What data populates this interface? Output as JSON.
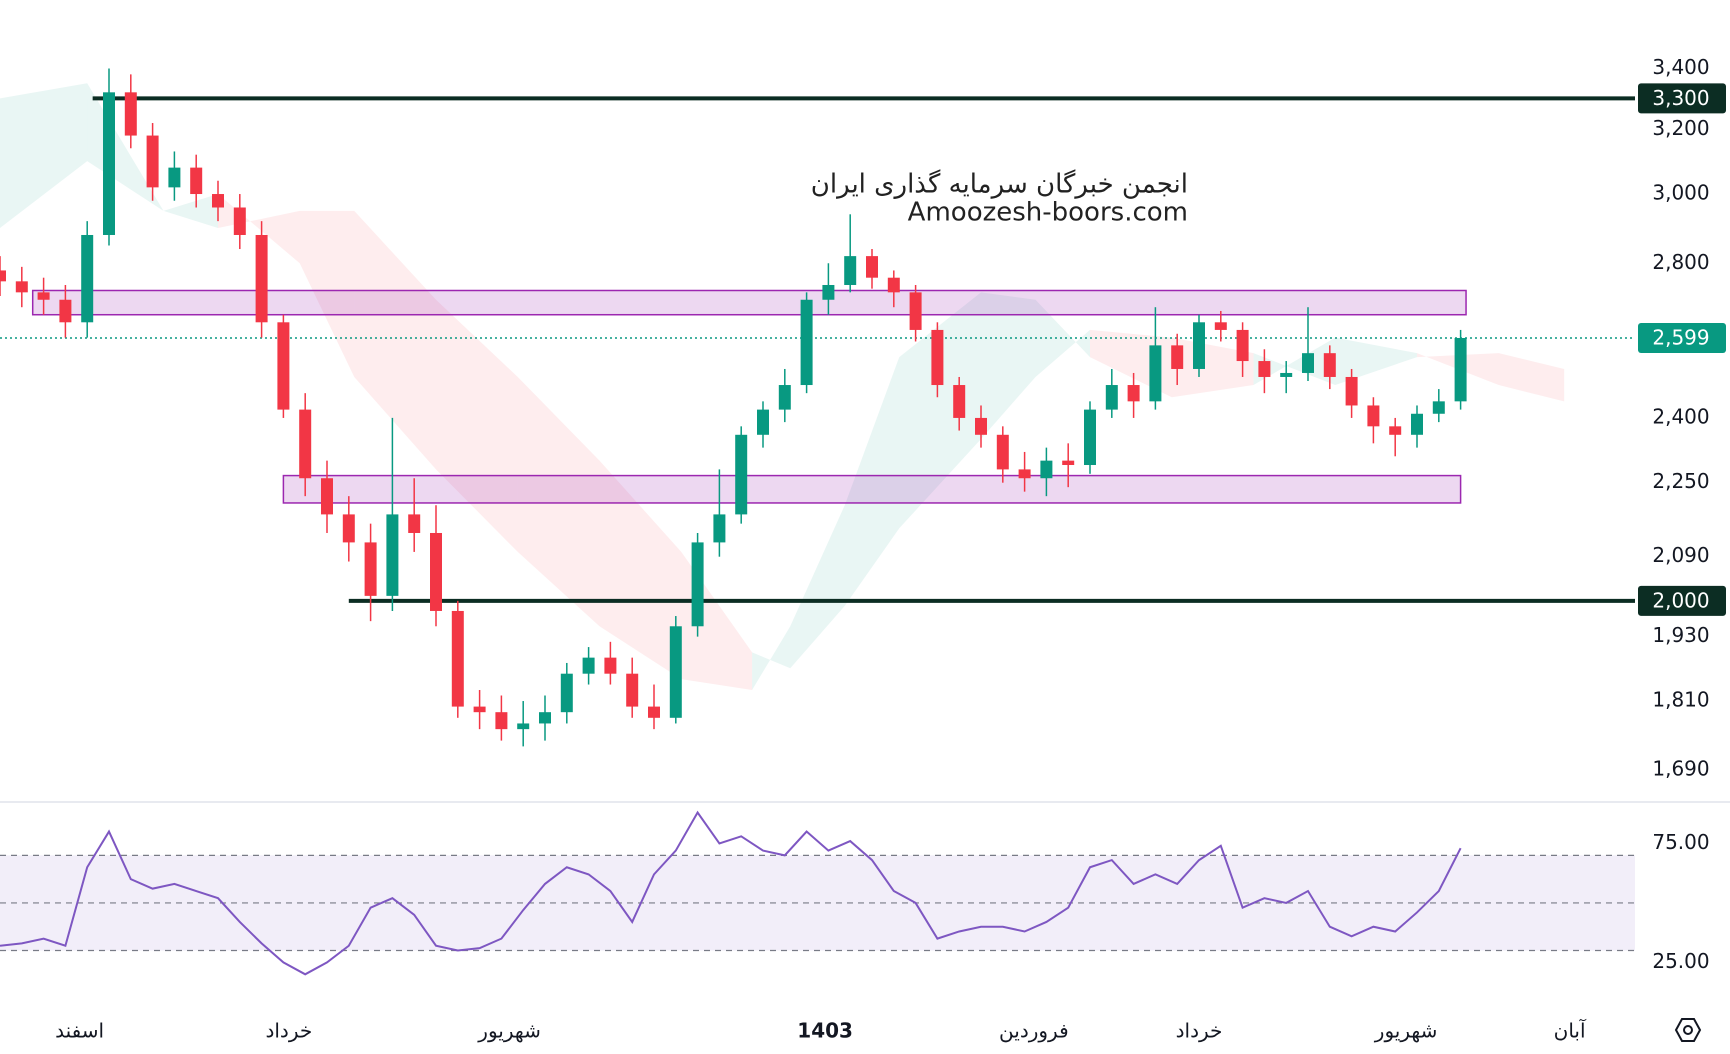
{
  "chart_data": {
    "type": "candlestick",
    "watermark": [
      "انجمن خبرگان سرمایه گذاری ایران",
      "Amoozesh-boors.com"
    ],
    "log": true,
    "xlim": [
      0,
      300
    ],
    "ylim": [
      1640,
      3640
    ],
    "up_color": "#089981",
    "down_color": "#f23645",
    "yticks": [
      {
        "value": 3400,
        "label": "3,400"
      },
      {
        "value": 3200,
        "label": "3,200"
      },
      {
        "value": 3000,
        "label": "3,000"
      },
      {
        "value": 2800,
        "label": "2,800"
      },
      {
        "value": 2400,
        "label": "2,400"
      },
      {
        "value": 2250,
        "label": "2,250"
      },
      {
        "value": 2090,
        "label": "2,090"
      },
      {
        "value": 1930,
        "label": "1,930"
      },
      {
        "value": 1810,
        "label": "1,810"
      },
      {
        "value": 1690,
        "label": "1,690"
      }
    ],
    "xticks": [
      {
        "value": 14.6,
        "label": "اسفند"
      },
      {
        "value": 53,
        "label": "خرداد"
      },
      {
        "value": 93.5,
        "label": "شهریور"
      },
      {
        "value": 151.4,
        "label": "1403"
      },
      {
        "value": 189.7,
        "label": "فروردین"
      },
      {
        "value": 220,
        "label": "خرداد"
      },
      {
        "value": 258,
        "label": "شهریور"
      },
      {
        "value": 288,
        "label": "آبان"
      }
    ],
    "x": [
      0,
      4,
      8,
      12,
      16,
      20,
      24,
      28,
      32,
      36,
      40,
      44,
      48,
      52,
      56,
      60,
      64,
      68,
      72,
      76,
      80,
      84,
      88,
      92,
      96,
      100,
      104,
      108,
      112,
      116,
      120,
      124,
      128,
      132,
      136,
      140,
      144,
      148,
      152,
      156,
      160,
      164,
      168,
      172,
      176,
      180,
      184,
      188,
      192,
      196,
      200,
      204,
      208,
      212,
      216,
      220,
      224,
      228,
      232,
      236,
      240,
      244,
      248,
      252,
      256,
      260,
      264,
      268
    ],
    "open": [
      2780,
      2750,
      2720,
      2700,
      2640,
      2880,
      3320,
      3180,
      3020,
      3080,
      3000,
      2960,
      2880,
      2640,
      2420,
      2260,
      2180,
      2120,
      2010,
      2180,
      2140,
      1980,
      1800,
      1790,
      1760,
      1770,
      1790,
      1860,
      1890,
      1860,
      1800,
      1780,
      1950,
      2120,
      2180,
      2360,
      2420,
      2480,
      2700,
      2740,
      2820,
      2760,
      2720,
      2620,
      2480,
      2400,
      2360,
      2280,
      2260,
      2300,
      2290,
      2420,
      2480,
      2440,
      2580,
      2520,
      2640,
      2620,
      2540,
      2500,
      2510,
      2560,
      2500,
      2430,
      2380,
      2360,
      2410,
      2440
    ],
    "high": [
      2820,
      2790,
      2760,
      2740,
      2920,
      3400,
      3380,
      3220,
      3130,
      3120,
      3040,
      3000,
      2920,
      2660,
      2460,
      2300,
      2220,
      2160,
      2400,
      2260,
      2200,
      2000,
      1830,
      1820,
      1810,
      1820,
      1880,
      1910,
      1920,
      1890,
      1840,
      1970,
      2140,
      2280,
      2380,
      2440,
      2520,
      2720,
      2800,
      2940,
      2840,
      2780,
      2740,
      2640,
      2500,
      2430,
      2380,
      2320,
      2330,
      2340,
      2440,
      2520,
      2510,
      2680,
      2610,
      2660,
      2670,
      2640,
      2570,
      2540,
      2680,
      2580,
      2520,
      2450,
      2400,
      2430,
      2470,
      2620
    ],
    "low": [
      2710,
      2680,
      2660,
      2600,
      2600,
      2850,
      3140,
      2980,
      2980,
      2960,
      2920,
      2840,
      2600,
      2400,
      2220,
      2140,
      2080,
      1960,
      1980,
      2100,
      1950,
      1780,
      1760,
      1740,
      1730,
      1740,
      1770,
      1840,
      1840,
      1780,
      1760,
      1770,
      1930,
      2090,
      2160,
      2330,
      2390,
      2460,
      2660,
      2720,
      2730,
      2680,
      2590,
      2450,
      2370,
      2330,
      2250,
      2230,
      2220,
      2240,
      2270,
      2400,
      2400,
      2420,
      2480,
      2500,
      2590,
      2500,
      2460,
      2460,
      2490,
      2470,
      2400,
      2340,
      2310,
      2330,
      2390,
      2420
    ],
    "close": [
      2750,
      2720,
      2700,
      2640,
      2880,
      3320,
      3180,
      3020,
      3080,
      3000,
      2960,
      2880,
      2640,
      2420,
      2260,
      2180,
      2120,
      2010,
      2180,
      2140,
      1980,
      1800,
      1790,
      1760,
      1770,
      1790,
      1860,
      1890,
      1860,
      1800,
      1780,
      1950,
      2120,
      2180,
      2360,
      2420,
      2480,
      2700,
      2740,
      2820,
      2760,
      2720,
      2620,
      2480,
      2400,
      2360,
      2280,
      2260,
      2300,
      2290,
      2420,
      2480,
      2440,
      2580,
      2520,
      2640,
      2620,
      2540,
      2500,
      2510,
      2560,
      2500,
      2430,
      2380,
      2360,
      2410,
      2440,
      2599
    ],
    "price_lines": [
      {
        "value": 3300,
        "label": "3,300",
        "color": "#0c2d23",
        "style": "solid",
        "x_start": 17
      },
      {
        "value": 2000,
        "label": "2,000",
        "color": "#0c2d23",
        "style": "solid",
        "x_start": 64
      },
      {
        "value": 2599,
        "label": "2,599",
        "color": "#089981",
        "style": "dotted",
        "x_start": 0
      }
    ],
    "zones": [
      {
        "x": [
          6,
          269
        ],
        "y": [
          2660,
          2725
        ],
        "color": "#9c27b0"
      },
      {
        "x": [
          52,
          268
        ],
        "y": [
          2205,
          2266
        ],
        "color": "#9c27b0"
      }
    ],
    "cloud": {
      "x": [
        0,
        16,
        30,
        40,
        55,
        65,
        80,
        95,
        110,
        125,
        138,
        145,
        155,
        165,
        180,
        190,
        200,
        215,
        230,
        245,
        260,
        275,
        287
      ],
      "span_a": [
        3300,
        3350,
        2950,
        3000,
        2800,
        2500,
        2280,
        2100,
        1950,
        1850,
        1830,
        1950,
        2200,
        2550,
        2720,
        2700,
        2550,
        2450,
        2480,
        2600,
        2560,
        2480,
        2440
      ],
      "span_b": [
        2900,
        3100,
        2950,
        2900,
        2950,
        2950,
        2700,
        2500,
        2300,
        2100,
        1900,
        1870,
        1990,
        2150,
        2350,
        2500,
        2620,
        2600,
        2560,
        2480,
        2550,
        2560,
        2520
      ],
      "up_color": "#089981",
      "down_color": "#f23645"
    },
    "rsi": {
      "type": "line",
      "color": "#7e57c2",
      "ylim": [
        5,
        92
      ],
      "yticks": [
        {
          "value": 75,
          "label": "75.00"
        },
        {
          "value": 25,
          "label": "25.00"
        }
      ],
      "levels": [
        70,
        50,
        30
      ],
      "values": [
        32,
        33,
        35,
        32,
        65,
        80,
        60,
        56,
        58,
        55,
        52,
        42,
        33,
        25,
        20,
        25,
        32,
        48,
        52,
        45,
        32,
        30,
        31,
        35,
        47,
        58,
        65,
        62,
        55,
        42,
        62,
        72,
        88,
        75,
        78,
        72,
        70,
        80,
        72,
        76,
        68,
        55,
        50,
        35,
        38,
        40,
        40,
        38,
        42,
        48,
        65,
        68,
        58,
        62,
        58,
        68,
        74,
        48,
        52,
        50,
        55,
        40,
        36,
        40,
        38,
        46,
        55,
        73
      ]
    }
  }
}
